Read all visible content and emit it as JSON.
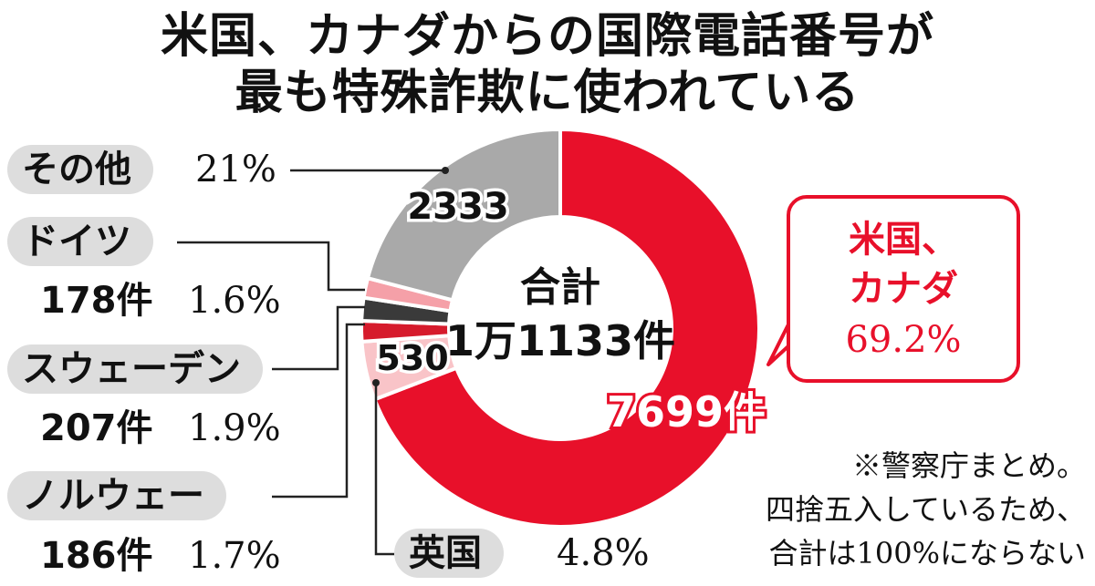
{
  "title_line1": "米国、カナダからの国際電話番号が",
  "title_line2": "最も特殊詐欺に使われている",
  "chart_data": {
    "type": "donut",
    "title": "米国、カナダからの国際電話番号が最も特殊詐欺に使われている",
    "center_label_line1": "合計",
    "center_label_line2": "1万1133件",
    "total": 11133,
    "slices": [
      {
        "key": "us_canada",
        "name": "米国、カナダ",
        "count": 7699,
        "count_label": "7699件",
        "percent": 69.2,
        "percent_label": "69.2%",
        "color": "#e8102a"
      },
      {
        "key": "uk",
        "name": "英国",
        "count": 530,
        "count_label": "530",
        "percent": 4.8,
        "percent_label": "4.8%",
        "color": "#f9c4c8"
      },
      {
        "key": "norway",
        "name": "ノルウェー",
        "count": 186,
        "count_label": "186件",
        "percent": 1.7,
        "percent_label": "1.7%",
        "color": "#d61b2c"
      },
      {
        "key": "sweden",
        "name": "スウェーデン",
        "count": 207,
        "count_label": "207件",
        "percent": 1.9,
        "percent_label": "1.9%",
        "color": "#3a3a3a"
      },
      {
        "key": "germany",
        "name": "ドイツ",
        "count": 178,
        "count_label": "178件",
        "percent": 1.6,
        "percent_label": "1.6%",
        "color": "#f5a0a8"
      },
      {
        "key": "other",
        "name": "その他",
        "count": 2333,
        "count_label": "2333",
        "percent": 21,
        "percent_label": "21%",
        "color": "#a9a9a9"
      }
    ]
  },
  "labels": {
    "other_name": "その他",
    "other_pct": "21%",
    "germany_name": "ドイツ",
    "germany_count": "178件",
    "germany_pct": "1.6%",
    "sweden_name": "スウェーデン",
    "sweden_count": "207件",
    "sweden_pct": "1.9%",
    "norway_name": "ノルウェー",
    "norway_count": "186件",
    "norway_pct": "1.7%",
    "uk_name": "英国",
    "uk_pct": "4.8%",
    "callout_line1": "米国、",
    "callout_line2": "カナダ",
    "callout_pct": "69.2%"
  },
  "note_lines": [
    "※警察庁まとめ。",
    "四捨五入しているため、",
    "合計は100%にならない"
  ]
}
